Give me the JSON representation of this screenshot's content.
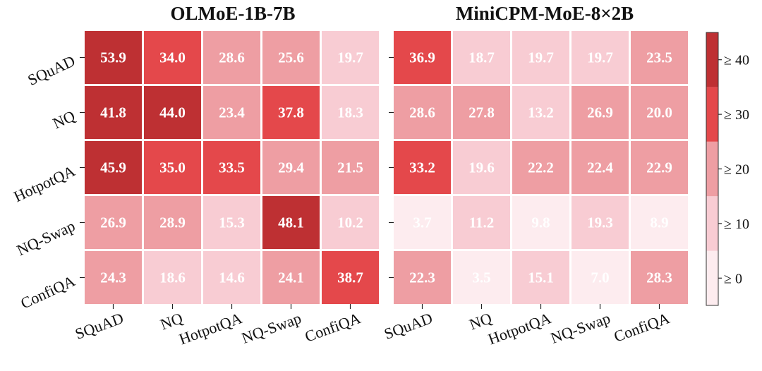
{
  "chart_data": [
    {
      "type": "heatmap",
      "title": "OLMoE-1B-7B",
      "rows": [
        "SQuAD",
        "NQ",
        "HotpotQA",
        "NQ-Swap",
        "ConfiQA"
      ],
      "cols": [
        "SQuAD",
        "NQ",
        "HotpotQA",
        "NQ-Swap",
        "ConfiQA"
      ],
      "values": [
        [
          53.9,
          34.0,
          28.6,
          25.6,
          19.7
        ],
        [
          41.8,
          44.0,
          23.4,
          37.8,
          18.3
        ],
        [
          45.9,
          35.0,
          33.5,
          29.4,
          21.5
        ],
        [
          26.9,
          28.9,
          15.3,
          48.1,
          10.2
        ],
        [
          24.3,
          18.6,
          14.6,
          24.1,
          38.7
        ]
      ],
      "labels": [
        [
          "53.9",
          "34.0",
          "28.6",
          "25.6",
          "19.7"
        ],
        [
          "41.8",
          "44.0",
          "23.4",
          "37.8",
          "18.3"
        ],
        [
          "45.9",
          "35.0",
          "33.5",
          "29.4",
          "21.5"
        ],
        [
          "26.9",
          "28.9",
          "15.3",
          "48.1",
          "10.2"
        ],
        [
          "24.3",
          "18.6",
          "14.6",
          "24.1",
          "38.7"
        ]
      ]
    },
    {
      "type": "heatmap",
      "title": "MiniCPM-MoE-8×2B",
      "rows": [
        "SQuAD",
        "NQ",
        "HotpotQA",
        "NQ-Swap",
        "ConfiQA"
      ],
      "cols": [
        "SQuAD",
        "NQ",
        "HotpotQA",
        "NQ-Swap",
        "ConfiQA"
      ],
      "values": [
        [
          36.9,
          18.7,
          19.7,
          19.7,
          23.5
        ],
        [
          28.6,
          27.8,
          13.2,
          26.9,
          20.0
        ],
        [
          33.2,
          19.6,
          22.2,
          22.4,
          22.9
        ],
        [
          3.7,
          11.2,
          9.8,
          19.3,
          8.9
        ],
        [
          22.3,
          3.5,
          15.1,
          7.0,
          28.3
        ]
      ],
      "labels": [
        [
          "36.9",
          "18.7",
          "19.7",
          "19.7",
          "23.5"
        ],
        [
          "28.6",
          "27.8",
          "13.2",
          "26.9",
          "20.0"
        ],
        [
          "33.2",
          "19.6",
          "22.2",
          "22.4",
          "22.9"
        ],
        [
          "3.7",
          "11.2",
          "9.8",
          "19.3",
          "8.9"
        ],
        [
          "22.3",
          "3.5",
          "15.1",
          "7.0",
          "28.3"
        ]
      ]
    }
  ],
  "colorbar": {
    "bins": [
      {
        "label": "≥ 0",
        "min": 0,
        "color": "#fdecef"
      },
      {
        "label": "≥ 10",
        "min": 10,
        "color": "#f8ccd3"
      },
      {
        "label": "≥ 20",
        "min": 20,
        "color": "#ee9ea3"
      },
      {
        "label": "≥ 30",
        "min": 30,
        "color": "#e4484b"
      },
      {
        "label": "≥ 40",
        "min": 40,
        "color": "#be3033"
      }
    ]
  }
}
